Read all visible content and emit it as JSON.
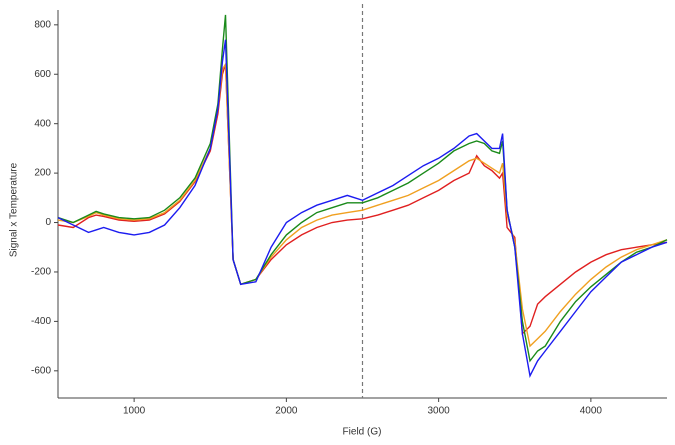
{
  "chart_data": {
    "type": "line",
    "xlabel": "Field (G)",
    "ylabel": "Signal x Temperature",
    "x": [
      500,
      600,
      700,
      750,
      800,
      900,
      1000,
      1100,
      1200,
      1300,
      1400,
      1500,
      1550,
      1580,
      1600,
      1650,
      1700,
      1800,
      1900,
      2000,
      2100,
      2200,
      2300,
      2400,
      2500,
      2600,
      2700,
      2800,
      2900,
      3000,
      3100,
      3200,
      3250,
      3300,
      3350,
      3400,
      3420,
      3450,
      3500,
      3550,
      3600,
      3650,
      3700,
      3800,
      3900,
      4000,
      4100,
      4200,
      4300,
      4400,
      4500
    ],
    "series": [
      {
        "color": "#e02020",
        "values": [
          -10,
          -20,
          20,
          30,
          25,
          10,
          5,
          10,
          35,
          85,
          165,
          290,
          440,
          600,
          640,
          -150,
          -250,
          -230,
          -150,
          -90,
          -50,
          -20,
          0,
          10,
          15,
          30,
          50,
          70,
          100,
          130,
          170,
          200,
          270,
          230,
          210,
          180,
          200,
          -20,
          -60,
          -450,
          -420,
          -330,
          -300,
          -250,
          -200,
          -160,
          -130,
          -110,
          -100,
          -90,
          -80
        ]
      },
      {
        "color": "#f0a020",
        "values": [
          10,
          0,
          25,
          40,
          30,
          15,
          10,
          15,
          40,
          90,
          170,
          300,
          460,
          620,
          640,
          -150,
          -250,
          -230,
          -140,
          -70,
          -20,
          10,
          30,
          40,
          50,
          70,
          90,
          110,
          140,
          170,
          210,
          250,
          260,
          240,
          220,
          200,
          240,
          30,
          -80,
          -350,
          -500,
          -470,
          -440,
          -360,
          -290,
          -230,
          -180,
          -140,
          -110,
          -90,
          -70
        ]
      },
      {
        "color": "#1a8a1a",
        "values": [
          20,
          0,
          30,
          45,
          35,
          20,
          15,
          20,
          50,
          100,
          180,
          320,
          480,
          700,
          840,
          -150,
          -250,
          -230,
          -130,
          -50,
          0,
          40,
          60,
          80,
          80,
          100,
          130,
          160,
          200,
          240,
          290,
          320,
          330,
          320,
          290,
          280,
          330,
          50,
          -100,
          -400,
          -560,
          -520,
          -500,
          -400,
          -320,
          -260,
          -210,
          -160,
          -120,
          -100,
          -70
        ]
      },
      {
        "color": "#1c1cf0",
        "values": [
          20,
          -10,
          -40,
          -30,
          -20,
          -40,
          -50,
          -40,
          -10,
          60,
          150,
          300,
          460,
          650,
          740,
          -150,
          -250,
          -240,
          -100,
          0,
          40,
          70,
          90,
          110,
          90,
          120,
          150,
          190,
          230,
          260,
          300,
          350,
          360,
          330,
          300,
          300,
          360,
          50,
          -100,
          -450,
          -620,
          -560,
          -520,
          -440,
          -360,
          -280,
          -220,
          -160,
          -130,
          -100,
          -80
        ]
      }
    ],
    "xlim": [
      500,
      4500
    ],
    "ylim": [
      -710,
      860
    ],
    "xticks": [
      1000,
      2000,
      3000,
      4000
    ],
    "yticks": [
      -600,
      -400,
      -200,
      0,
      200,
      400,
      600,
      800
    ],
    "vlines": [
      2500
    ]
  }
}
